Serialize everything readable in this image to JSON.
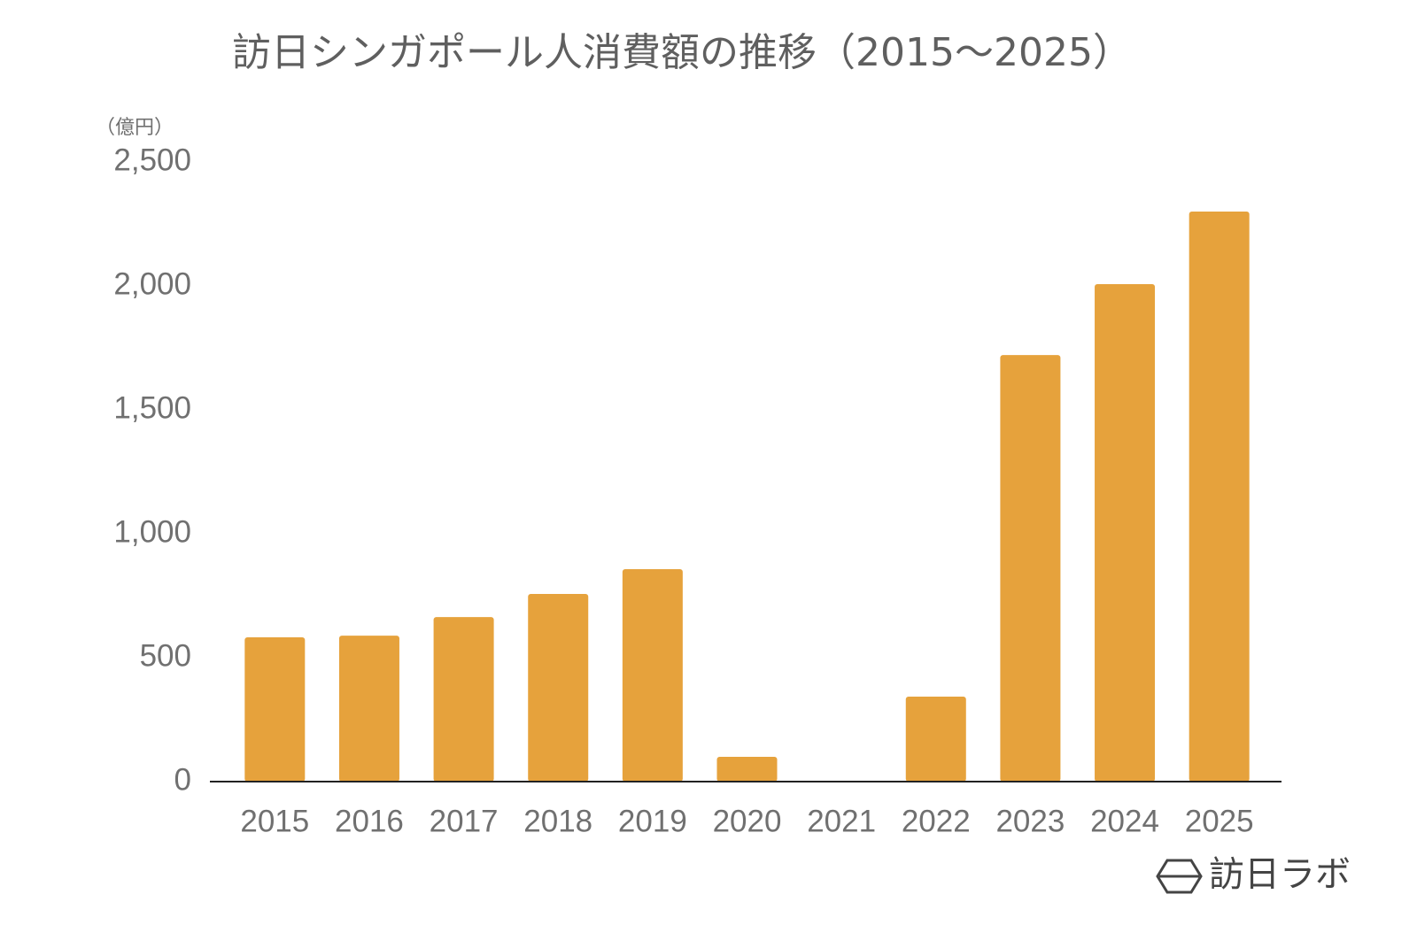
{
  "chart_data": {
    "type": "bar",
    "title": "訪日シンガポール人消費額の推移（2015〜2025）",
    "y_label": "（億円）",
    "categories": [
      "2015",
      "2016",
      "2017",
      "2018",
      "2019",
      "2020",
      "2021",
      "2022",
      "2023",
      "2024",
      "2025"
    ],
    "values": [
      582,
      589,
      664,
      757,
      857,
      100,
      0,
      343,
      1721,
      2007,
      2300
    ],
    "color": "#e6a23c",
    "ylim": [
      0,
      2500
    ],
    "yticks": [
      0,
      500,
      {
        "value": 1000,
        "label": "1,000"
      },
      {
        "value": 1500,
        "label": "1,500"
      },
      {
        "value": 2000,
        "label": "2,000"
      },
      {
        "value": 2500,
        "label": "2,500"
      }
    ],
    "grid": false,
    "source": "訪日ラボ"
  }
}
